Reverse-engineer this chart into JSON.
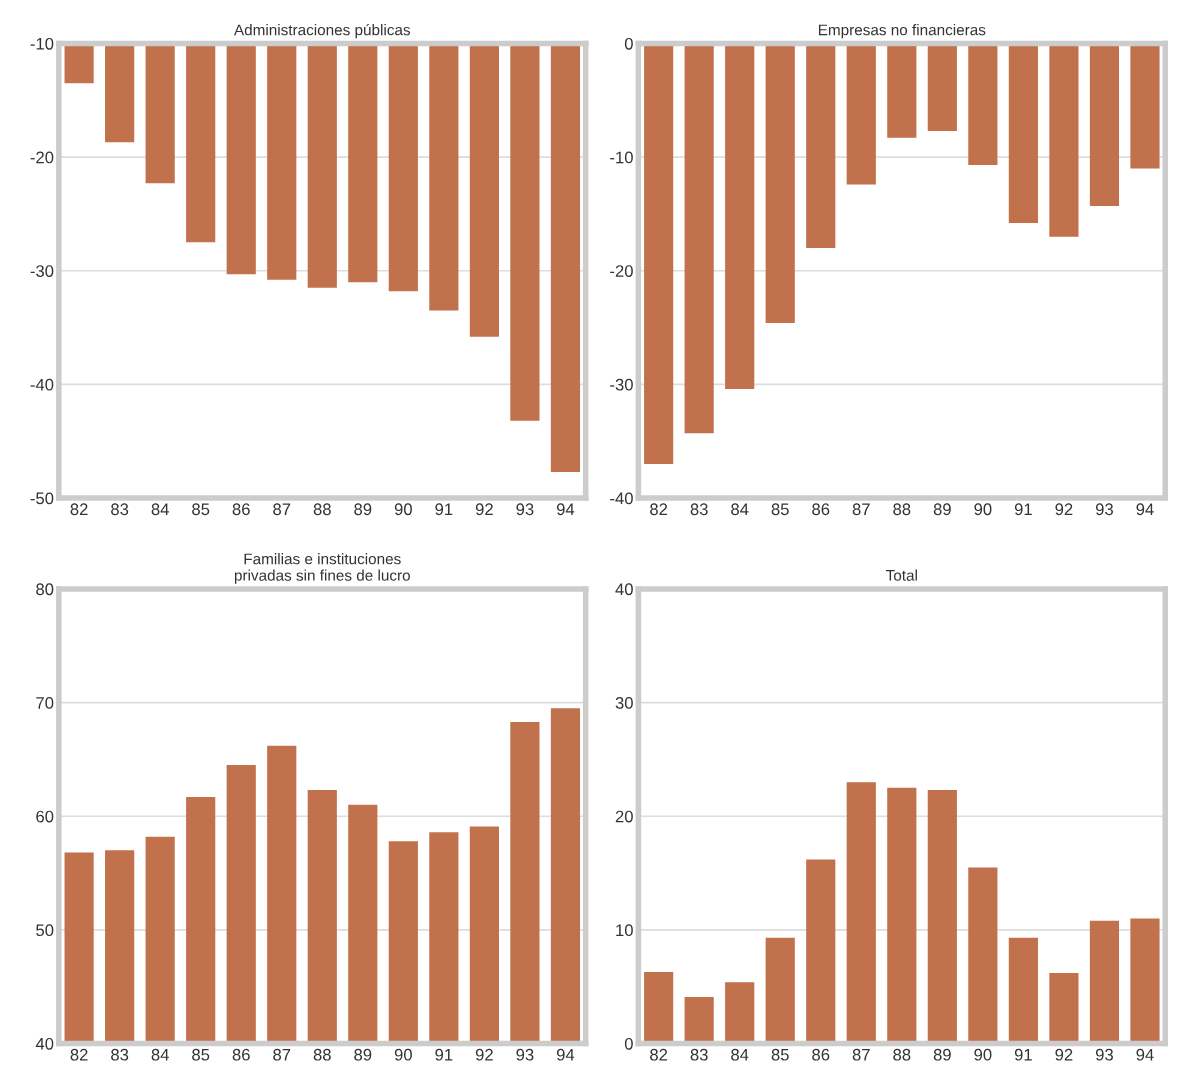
{
  "chart_data": [
    {
      "type": "bar",
      "title": "Administraciones públicas",
      "categories": [
        "82",
        "83",
        "84",
        "85",
        "86",
        "87",
        "88",
        "89",
        "90",
        "91",
        "92",
        "93",
        "94"
      ],
      "values": [
        -13.5,
        -18.7,
        -22.3,
        -27.5,
        -30.3,
        -30.8,
        -31.5,
        -31,
        -31.8,
        -33.5,
        -35.8,
        -43.2,
        -47.7
      ],
      "color": "#c1714c",
      "ylim": [
        -50,
        -10
      ],
      "yticks": [
        -50,
        -40,
        -30,
        -20,
        -10
      ],
      "grid": "y"
    },
    {
      "type": "bar",
      "title": "Empresas no financieras",
      "categories": [
        "82",
        "83",
        "84",
        "85",
        "86",
        "87",
        "88",
        "89",
        "90",
        "91",
        "92",
        "93",
        "94"
      ],
      "values": [
        -37,
        -34.3,
        -30.4,
        -24.6,
        -18,
        -12.4,
        -8.3,
        -7.7,
        -10.7,
        -15.8,
        -17,
        -14.3,
        -11
      ],
      "color": "#c1714c",
      "ylim": [
        -40,
        0
      ],
      "yticks": [
        -40,
        -30,
        -20,
        -10,
        0
      ],
      "grid": "y"
    },
    {
      "type": "bar",
      "title": "Familias e instituciones\nprivadas sin fines de lucro",
      "categories": [
        "82",
        "83",
        "84",
        "85",
        "86",
        "87",
        "88",
        "89",
        "90",
        "91",
        "92",
        "93",
        "94"
      ],
      "values": [
        56.8,
        57,
        58.2,
        61.7,
        64.5,
        66.2,
        62.3,
        61,
        57.8,
        58.6,
        59.1,
        68.3,
        69.5
      ],
      "color": "#c1714c",
      "ylim": [
        40,
        80
      ],
      "yticks": [
        40,
        50,
        60,
        70,
        80
      ],
      "grid": "y"
    },
    {
      "type": "bar",
      "title": "Total",
      "categories": [
        "82",
        "83",
        "84",
        "85",
        "86",
        "87",
        "88",
        "89",
        "90",
        "91",
        "92",
        "93",
        "94"
      ],
      "values": [
        6.3,
        4.1,
        5.4,
        9.3,
        16.2,
        23,
        22.5,
        22.3,
        15.5,
        9.3,
        6.2,
        10.8,
        11
      ],
      "color": "#c1714c",
      "ylim": [
        0,
        40
      ],
      "yticks": [
        0,
        10,
        20,
        30,
        40
      ],
      "grid": "y"
    }
  ]
}
